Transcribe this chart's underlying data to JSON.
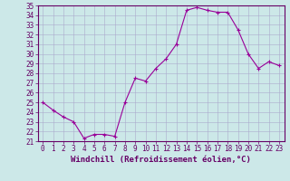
{
  "hours": [
    0,
    1,
    2,
    3,
    4,
    5,
    6,
    7,
    8,
    9,
    10,
    11,
    12,
    13,
    14,
    15,
    16,
    17,
    18,
    19,
    20,
    21,
    22,
    23
  ],
  "values": [
    25.0,
    24.2,
    23.5,
    23.0,
    21.3,
    21.7,
    21.7,
    21.5,
    25.0,
    27.5,
    27.2,
    28.5,
    29.5,
    31.0,
    34.5,
    34.8,
    34.5,
    34.3,
    34.3,
    32.5,
    30.0,
    28.5,
    29.2,
    28.8
  ],
  "ylim": [
    21,
    35
  ],
  "yticks": [
    21,
    22,
    23,
    24,
    25,
    26,
    27,
    28,
    29,
    30,
    31,
    32,
    33,
    34,
    35
  ],
  "xticks": [
    0,
    1,
    2,
    3,
    4,
    5,
    6,
    7,
    8,
    9,
    10,
    11,
    12,
    13,
    14,
    15,
    16,
    17,
    18,
    19,
    20,
    21,
    22,
    23
  ],
  "xlabel": "Windchill (Refroidissement éolien,°C)",
  "line_color": "#990099",
  "marker_color": "#990099",
  "bg_color": "#cce8e8",
  "grid_color": "#aaaacc",
  "axis_color": "#660066",
  "tick_label_color": "#660066",
  "xlabel_color": "#660066",
  "tick_fontsize": 5.5,
  "xlabel_fontsize": 6.5
}
